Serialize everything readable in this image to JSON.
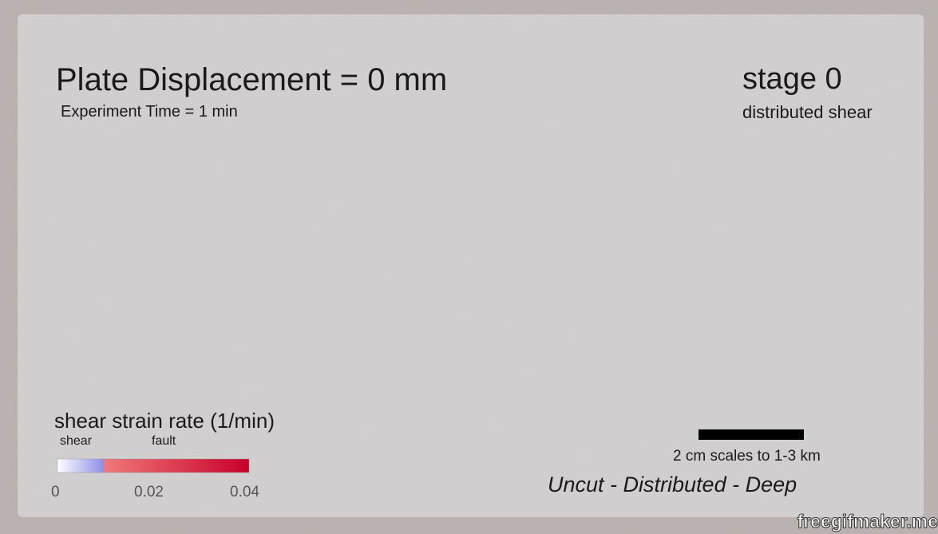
{
  "header": {
    "title": "Plate Displacement = 0 mm",
    "subtitle": "Experiment Time = 1 min"
  },
  "stage": {
    "title": "stage 0",
    "subtitle": "distributed shear"
  },
  "legend": {
    "title": "shear strain rate (1/min)",
    "zones": [
      "shear",
      "fault"
    ],
    "ticks": [
      "0",
      "0.02",
      "0.04"
    ]
  },
  "scale_bar": {
    "label": "2 cm scales to 1-3 km"
  },
  "caption": "Uncut - Distributed - Deep",
  "watermark": "freegifmaker.me"
}
